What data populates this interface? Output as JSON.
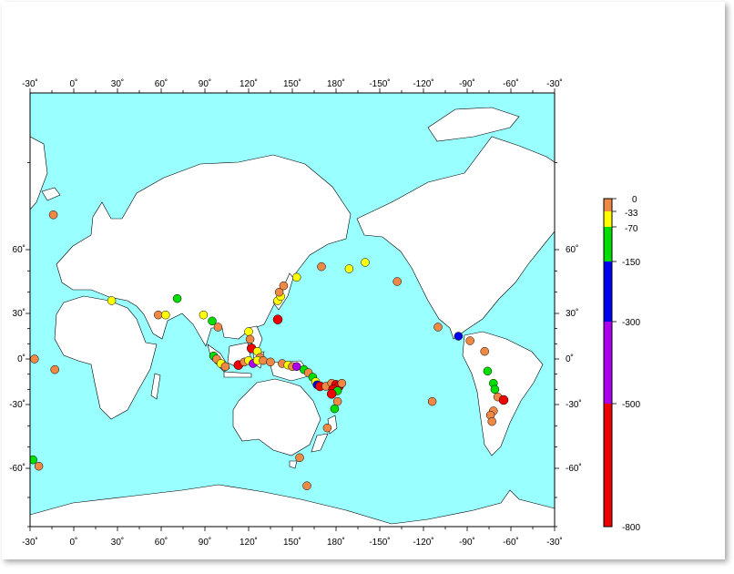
{
  "map": {
    "ocean_color": "#99ffff",
    "land_color": "#ffffff",
    "top_labels": [
      "-30˚",
      "0˚",
      "30˚",
      "60˚",
      "90˚",
      "120˚",
      "150˚",
      "180˚",
      "-150˚",
      "-120˚",
      "-90˚",
      "-60˚",
      "-30˚"
    ],
    "bottom_labels": [
      "-30˚",
      "0˚",
      "30˚",
      "60˚",
      "90˚",
      "120˚",
      "150˚",
      "180˚",
      "-150˚",
      "-120˚",
      "-90˚",
      "-60˚",
      "-30˚"
    ],
    "lat_labels": [
      "60˚",
      "30˚",
      "0˚",
      "-30˚",
      "-60˚"
    ]
  },
  "legend": {
    "labels": [
      "0",
      "-33",
      "-70",
      "-150",
      "-300",
      "-500",
      "-800"
    ],
    "bands": [
      {
        "from": 0,
        "to": -33,
        "color": "#ee8844"
      },
      {
        "from": -33,
        "to": -70,
        "color": "#ffff00"
      },
      {
        "from": -70,
        "to": -150,
        "color": "#00dd00"
      },
      {
        "from": -150,
        "to": -300,
        "color": "#0000ee"
      },
      {
        "from": -300,
        "to": -500,
        "color": "#aa00ee"
      },
      {
        "from": -500,
        "to": -800,
        "color": "#ee0000"
      }
    ]
  },
  "earthquakes": [
    {
      "lon": -14,
      "lat": 64,
      "depth": -10
    },
    {
      "lon": -27,
      "lat": 0,
      "depth": -10
    },
    {
      "lon": -13,
      "lat": -7,
      "depth": -10
    },
    {
      "lon": -28,
      "lat": -56,
      "depth": -100
    },
    {
      "lon": -24,
      "lat": -59,
      "depth": -10
    },
    {
      "lon": 26,
      "lat": 36,
      "depth": -40
    },
    {
      "lon": 71,
      "lat": 37,
      "depth": -110
    },
    {
      "lon": 58,
      "lat": 29,
      "depth": -10
    },
    {
      "lon": 63,
      "lat": 29,
      "depth": -40
    },
    {
      "lon": 89,
      "lat": 29,
      "depth": -40
    },
    {
      "lon": 95,
      "lat": 25,
      "depth": -100
    },
    {
      "lon": 99,
      "lat": 21,
      "depth": -10
    },
    {
      "lon": 120,
      "lat": 18,
      "depth": -40
    },
    {
      "lon": 121,
      "lat": 13,
      "depth": -10
    },
    {
      "lon": 122,
      "lat": 7,
      "depth": -600
    },
    {
      "lon": 126,
      "lat": 5,
      "depth": -40
    },
    {
      "lon": 128,
      "lat": 1,
      "depth": -10
    },
    {
      "lon": 96,
      "lat": 2,
      "depth": -100
    },
    {
      "lon": 98,
      "lat": 0,
      "depth": -10
    },
    {
      "lon": 101,
      "lat": -3,
      "depth": -40
    },
    {
      "lon": 104,
      "lat": -5,
      "depth": -10
    },
    {
      "lon": 113,
      "lat": -4,
      "depth": -600
    },
    {
      "lon": 117,
      "lat": -2,
      "depth": -10
    },
    {
      "lon": 120,
      "lat": -1,
      "depth": -40
    },
    {
      "lon": 123,
      "lat": -3,
      "depth": -350
    },
    {
      "lon": 126,
      "lat": -1,
      "depth": -40
    },
    {
      "lon": 130,
      "lat": -1,
      "depth": -10
    },
    {
      "lon": 135,
      "lat": -2,
      "depth": -10
    },
    {
      "lon": 143,
      "lat": -3,
      "depth": -10
    },
    {
      "lon": 147,
      "lat": -4,
      "depth": -40
    },
    {
      "lon": 150,
      "lat": -5,
      "depth": -10
    },
    {
      "lon": 153,
      "lat": -5,
      "depth": -350
    },
    {
      "lon": 158,
      "lat": -7,
      "depth": -100
    },
    {
      "lon": 161,
      "lat": -9,
      "depth": -10
    },
    {
      "lon": 164,
      "lat": -12,
      "depth": -100
    },
    {
      "lon": 166,
      "lat": -15,
      "depth": -40
    },
    {
      "lon": 167,
      "lat": -17,
      "depth": -200
    },
    {
      "lon": 169,
      "lat": -18,
      "depth": -600
    },
    {
      "lon": 173,
      "lat": -18,
      "depth": -10
    },
    {
      "lon": 177,
      "lat": -16,
      "depth": -10
    },
    {
      "lon": 180,
      "lat": -17,
      "depth": -600
    },
    {
      "lon": 182,
      "lat": -18,
      "depth": -600
    },
    {
      "lon": 184,
      "lat": -16,
      "depth": -10
    },
    {
      "lon": 178,
      "lat": -20,
      "depth": -600
    },
    {
      "lon": 181,
      "lat": -21,
      "depth": -100
    },
    {
      "lon": 177,
      "lat": -23,
      "depth": -600
    },
    {
      "lon": 181,
      "lat": -28,
      "depth": -10
    },
    {
      "lon": 179,
      "lat": -32,
      "depth": -100
    },
    {
      "lon": 174,
      "lat": -41,
      "depth": -10
    },
    {
      "lon": 155,
      "lat": -55,
      "depth": -10
    },
    {
      "lon": 160,
      "lat": -66,
      "depth": -10
    },
    {
      "lon": 140,
      "lat": 26,
      "depth": -700
    },
    {
      "lon": 140,
      "lat": 36,
      "depth": -40
    },
    {
      "lon": 142,
      "lat": 38,
      "depth": -40
    },
    {
      "lon": 141,
      "lat": 40,
      "depth": -10
    },
    {
      "lon": 144,
      "lat": 43,
      "depth": -10
    },
    {
      "lon": 153,
      "lat": 47,
      "depth": -40
    },
    {
      "lon": 170,
      "lat": 52,
      "depth": -10
    },
    {
      "lon": 189,
      "lat": 51,
      "depth": -40
    },
    {
      "lon": 200,
      "lat": 54,
      "depth": -40
    },
    {
      "lon": 222,
      "lat": 45,
      "depth": -10
    },
    {
      "lon": 250,
      "lat": 21,
      "depth": -10
    },
    {
      "lon": 264,
      "lat": 15,
      "depth": -250
    },
    {
      "lon": 272,
      "lat": 12,
      "depth": -10
    },
    {
      "lon": 282,
      "lat": 5,
      "depth": -10
    },
    {
      "lon": 284,
      "lat": -8,
      "depth": -100
    },
    {
      "lon": 288,
      "lat": -16,
      "depth": -100
    },
    {
      "lon": 289,
      "lat": -20,
      "depth": -100
    },
    {
      "lon": 291,
      "lat": -25,
      "depth": -10
    },
    {
      "lon": 295,
      "lat": -27,
      "depth": -600
    },
    {
      "lon": 288,
      "lat": -33,
      "depth": -10
    },
    {
      "lon": 286,
      "lat": -35,
      "depth": -10
    },
    {
      "lon": 287,
      "lat": -38,
      "depth": -10
    },
    {
      "lon": 246,
      "lat": -28,
      "depth": -10
    }
  ]
}
